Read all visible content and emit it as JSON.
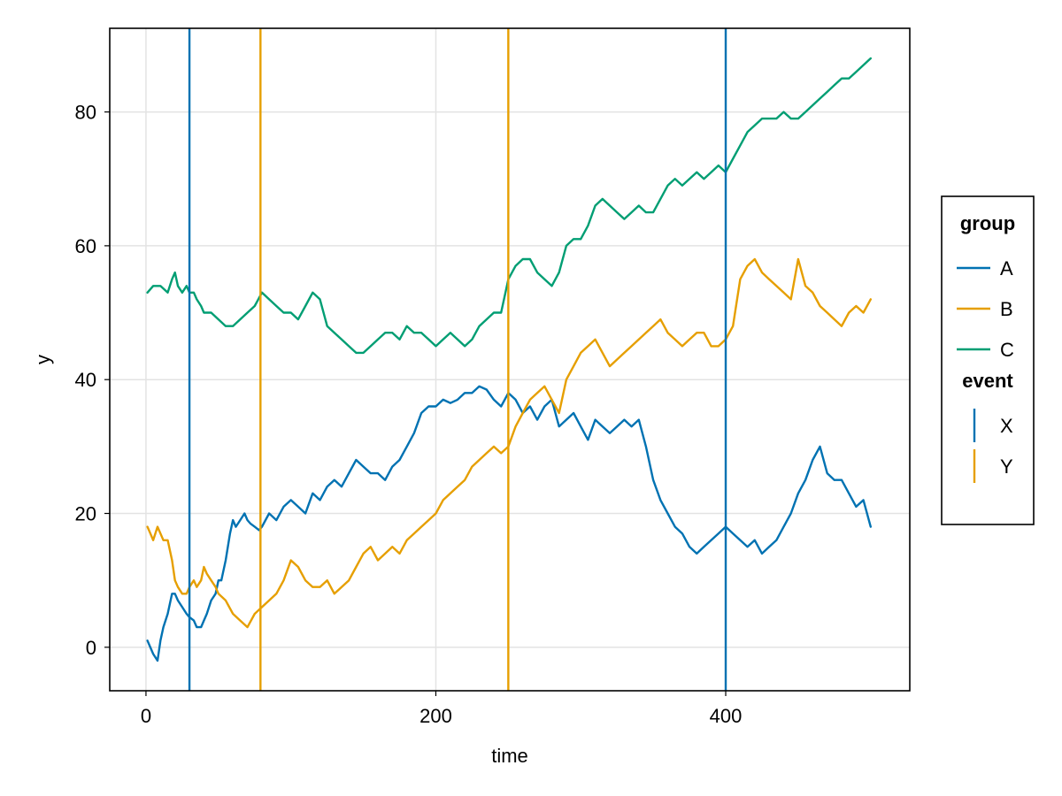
{
  "chart_data": {
    "type": "line",
    "title": "",
    "xlabel": "time",
    "ylabel": "y",
    "xlim": [
      -25,
      527
    ],
    "ylim": [
      -6.5,
      92.5
    ],
    "xticks": [
      0,
      200,
      400
    ],
    "yticks": [
      0,
      20,
      40,
      60,
      80
    ],
    "grid": true,
    "legend_position": "right",
    "series": [
      {
        "name": "A",
        "color": "#0072B2",
        "x": [
          1,
          5,
          8,
          10,
          12,
          15,
          18,
          20,
          22,
          25,
          28,
          30,
          33,
          35,
          38,
          40,
          42,
          45,
          48,
          50,
          52,
          55,
          58,
          60,
          62,
          65,
          68,
          70,
          72,
          75,
          78,
          80,
          85,
          90,
          95,
          100,
          105,
          110,
          115,
          120,
          125,
          130,
          135,
          140,
          145,
          150,
          155,
          160,
          165,
          170,
          175,
          180,
          185,
          190,
          195,
          200,
          205,
          210,
          215,
          220,
          225,
          230,
          235,
          240,
          245,
          250,
          255,
          260,
          265,
          270,
          275,
          280,
          285,
          290,
          295,
          300,
          305,
          310,
          315,
          320,
          325,
          330,
          335,
          340,
          345,
          350,
          355,
          360,
          365,
          370,
          375,
          380,
          385,
          390,
          395,
          400,
          405,
          410,
          415,
          420,
          425,
          430,
          435,
          440,
          445,
          450,
          455,
          460,
          465,
          470,
          475,
          480,
          485,
          490,
          495,
          500
        ],
        "y": [
          1,
          -1,
          -2,
          1,
          3,
          5,
          8,
          8,
          7,
          6,
          5,
          4.5,
          4,
          3,
          3,
          4,
          5,
          7,
          8,
          10,
          10,
          13,
          17,
          19,
          18,
          19,
          20,
          19,
          18.5,
          18,
          17.5,
          18,
          20,
          19,
          21,
          22,
          21,
          20,
          23,
          22,
          24,
          25,
          24,
          26,
          28,
          27,
          26,
          26,
          25,
          27,
          28,
          30,
          32,
          35,
          36,
          36,
          37,
          36.5,
          37,
          38,
          38,
          39,
          38.5,
          37,
          36,
          38,
          37,
          35,
          36,
          34,
          36,
          37,
          33,
          34,
          35,
          33,
          31,
          34,
          33,
          32,
          33,
          34,
          33,
          34,
          30,
          25,
          22,
          20,
          18,
          17,
          15,
          14,
          15,
          16,
          17,
          18,
          17,
          16,
          15,
          16,
          14,
          15,
          16,
          18,
          20,
          23,
          25,
          28,
          30,
          26,
          25,
          25,
          23,
          21,
          22,
          18
        ]
      },
      {
        "name": "B",
        "color": "#E69F00",
        "x": [
          1,
          3,
          5,
          8,
          10,
          12,
          15,
          18,
          20,
          22,
          25,
          28,
          30,
          33,
          35,
          38,
          40,
          42,
          45,
          48,
          50,
          55,
          60,
          65,
          70,
          75,
          80,
          85,
          90,
          95,
          100,
          105,
          110,
          115,
          120,
          125,
          130,
          135,
          140,
          145,
          150,
          155,
          160,
          165,
          170,
          175,
          180,
          185,
          190,
          195,
          200,
          205,
          210,
          215,
          220,
          225,
          230,
          235,
          240,
          245,
          250,
          255,
          260,
          265,
          270,
          275,
          280,
          285,
          290,
          295,
          300,
          305,
          310,
          315,
          320,
          325,
          330,
          335,
          340,
          345,
          350,
          355,
          360,
          365,
          370,
          375,
          380,
          385,
          390,
          395,
          400,
          405,
          410,
          415,
          420,
          425,
          430,
          435,
          440,
          445,
          450,
          455,
          460,
          465,
          470,
          475,
          480,
          485,
          490,
          495,
          500
        ],
        "y": [
          18,
          17,
          16,
          18,
          17,
          16,
          16,
          13,
          10,
          9,
          8,
          8,
          9,
          10,
          9,
          10,
          12,
          11,
          10,
          9,
          8,
          7,
          5,
          4,
          3,
          5,
          6,
          7,
          8,
          10,
          13,
          12,
          10,
          9,
          9,
          10,
          8,
          9,
          10,
          12,
          14,
          15,
          13,
          14,
          15,
          14,
          16,
          17,
          18,
          19,
          20,
          22,
          23,
          24,
          25,
          27,
          28,
          29,
          30,
          29,
          30,
          33,
          35,
          37,
          38,
          39,
          37,
          35,
          40,
          42,
          44,
          45,
          46,
          44,
          42,
          43,
          44,
          45,
          46,
          47,
          48,
          49,
          47,
          46,
          45,
          46,
          47,
          47,
          45,
          45,
          46,
          48,
          55,
          57,
          58,
          56,
          55,
          54,
          53,
          52,
          58,
          54,
          53,
          51,
          50,
          49,
          48,
          50,
          51,
          50,
          52
        ]
      },
      {
        "name": "C",
        "color": "#009E73",
        "x": [
          1,
          5,
          10,
          15,
          18,
          20,
          22,
          25,
          28,
          30,
          33,
          35,
          38,
          40,
          45,
          50,
          55,
          60,
          65,
          70,
          75,
          80,
          85,
          90,
          95,
          100,
          105,
          110,
          115,
          120,
          125,
          130,
          135,
          140,
          145,
          150,
          155,
          160,
          165,
          170,
          175,
          180,
          185,
          190,
          195,
          200,
          205,
          210,
          215,
          220,
          225,
          230,
          235,
          240,
          245,
          250,
          255,
          260,
          265,
          270,
          275,
          280,
          285,
          290,
          295,
          300,
          305,
          310,
          315,
          320,
          325,
          330,
          335,
          340,
          345,
          350,
          355,
          360,
          365,
          370,
          375,
          380,
          385,
          390,
          395,
          400,
          405,
          410,
          415,
          420,
          425,
          430,
          435,
          440,
          445,
          450,
          455,
          460,
          465,
          470,
          475,
          480,
          485,
          490,
          495,
          500
        ],
        "y": [
          53,
          54,
          54,
          53,
          55,
          56,
          54,
          53,
          54,
          53,
          53,
          52,
          51,
          50,
          50,
          49,
          48,
          48,
          49,
          50,
          51,
          53,
          52,
          51,
          50,
          50,
          49,
          51,
          53,
          52,
          48,
          47,
          46,
          45,
          44,
          44,
          45,
          46,
          47,
          47,
          46,
          48,
          47,
          47,
          46,
          45,
          46,
          47,
          46,
          45,
          46,
          48,
          49,
          50,
          50,
          55,
          57,
          58,
          58,
          56,
          55,
          54,
          56,
          60,
          61,
          61,
          63,
          66,
          67,
          66,
          65,
          64,
          65,
          66,
          65,
          65,
          67,
          69,
          70,
          69,
          70,
          71,
          70,
          71,
          72,
          71,
          73,
          75,
          77,
          78,
          79,
          79,
          79,
          80,
          79,
          79,
          80,
          81,
          82,
          83,
          84,
          85,
          85,
          86,
          87,
          88
        ]
      }
    ],
    "events": [
      {
        "name": "X",
        "color": "#0072B2",
        "x": [
          30,
          400
        ]
      },
      {
        "name": "Y",
        "color": "#E69F00",
        "x": [
          79,
          250
        ]
      }
    ],
    "legend": {
      "groups": [
        {
          "title": "group",
          "entries": [
            "A",
            "B",
            "C"
          ]
        },
        {
          "title": "event",
          "entries": [
            "X",
            "Y"
          ]
        }
      ]
    }
  }
}
